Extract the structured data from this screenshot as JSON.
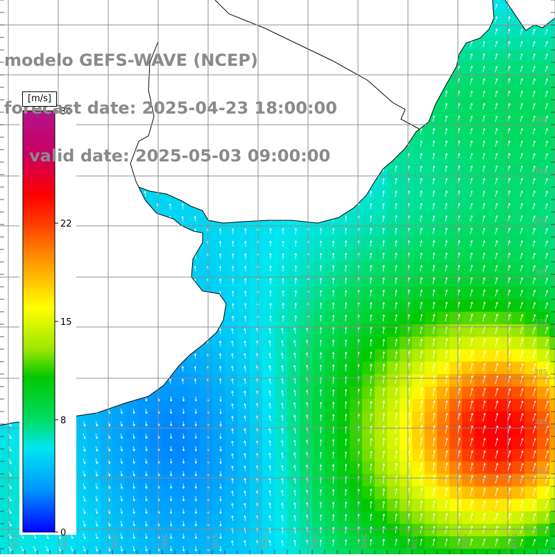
{
  "title": {
    "line1": "modelo GEFS-WAVE (NCEP)",
    "line2": "forecast date: 2025-04-23 18:00:00",
    "line3": "valid date: 2025-05-03 09:00:00"
  },
  "colorbar": {
    "unit": "[m/s]",
    "tick_labels": [
      "30",
      "22",
      "15",
      "8",
      "0"
    ],
    "tick_values": [
      30,
      22,
      15,
      8,
      0
    ],
    "colors": [
      "#0000ff",
      "#0096ff",
      "#00e6f0",
      "#00dc64",
      "#00c800",
      "#9be600",
      "#ffff00",
      "#ffa000",
      "#ff3c00",
      "#ff0000",
      "#c80064",
      "#b4148c"
    ]
  },
  "map": {
    "longitude_labels": [
      "61W",
      "60W",
      "59W",
      "58W",
      "57W",
      "56W",
      "55W",
      "54W",
      "53W",
      "52W",
      "51W"
    ],
    "latitude_labels": [
      "33S",
      "34S",
      "35S",
      "36S",
      "37S",
      "38S",
      "39S",
      "40S"
    ],
    "land_color": "#ffffff",
    "grid_color": "#8c8c8c",
    "coast_color": "#000000",
    "arrow_color": "#ffffff"
  }
}
